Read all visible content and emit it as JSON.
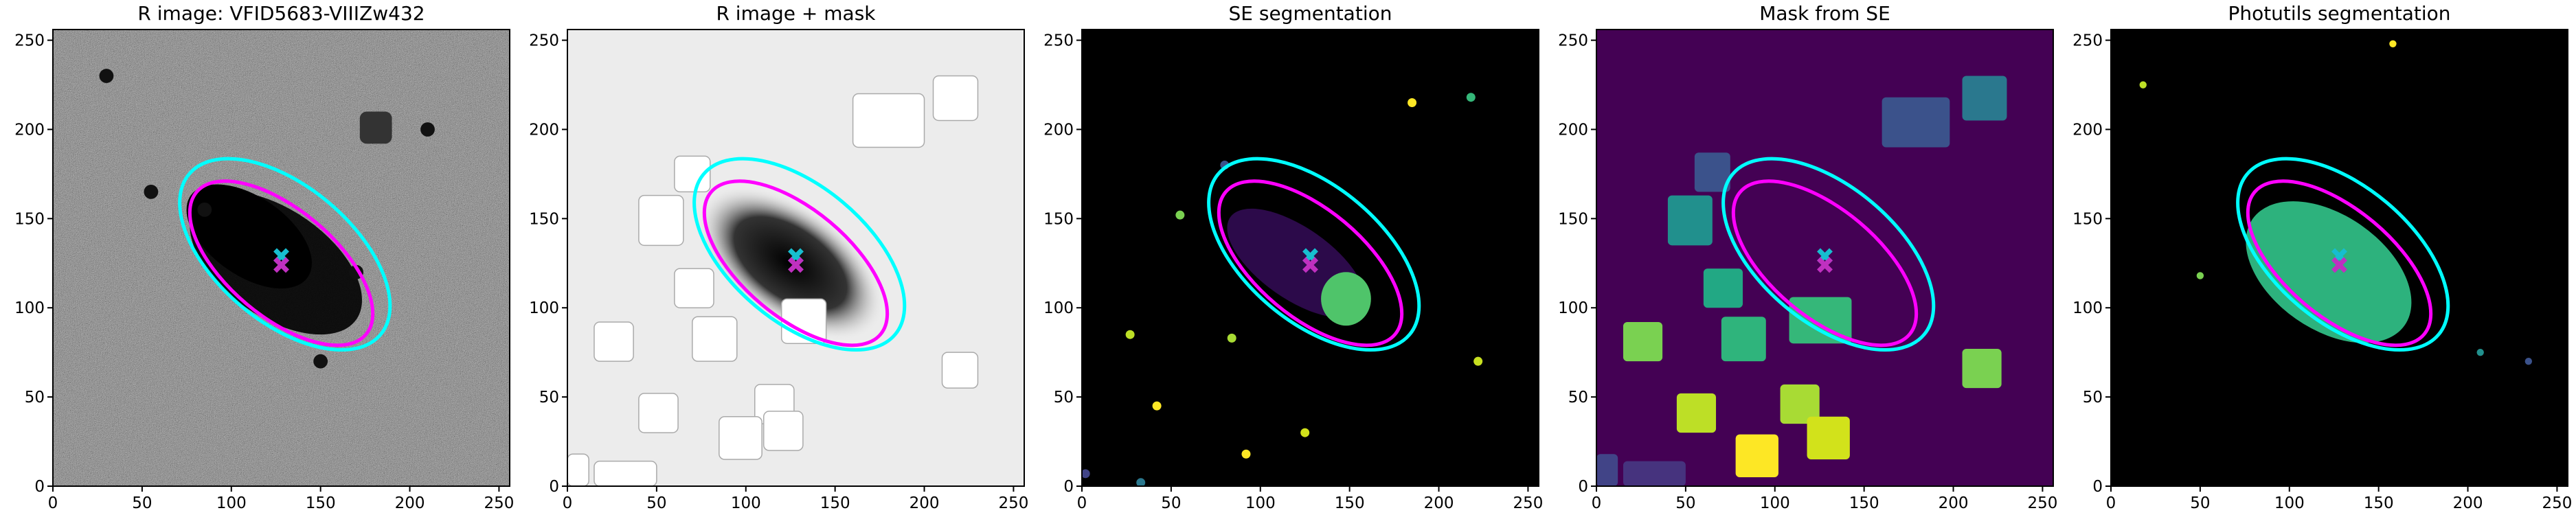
{
  "chart_data": [
    {
      "type": "image",
      "title": "R image: VFID5683-VIIIZw432",
      "background": "#808080",
      "noise": true,
      "xlim": [
        0,
        256
      ],
      "ylim": [
        0,
        256
      ],
      "xticks": [
        0,
        50,
        100,
        150,
        200,
        250
      ],
      "yticks": [
        0,
        50,
        100,
        150,
        200,
        250
      ],
      "ellipses": [
        {
          "color": "#00ffff",
          "x": 130,
          "y": 130,
          "width": 140,
          "height": 76,
          "angle": -40
        },
        {
          "color": "#ff00ff",
          "x": 128,
          "y": 125,
          "width": 124,
          "height": 60,
          "angle": -40
        }
      ],
      "markers": [
        {
          "color": "#17becf",
          "x": 128,
          "y": 129
        },
        {
          "color": "#c030c0",
          "x": 128,
          "y": 124
        }
      ]
    },
    {
      "type": "image",
      "title": "R image + mask",
      "background": "#ececec",
      "noise": false,
      "xlim": [
        0,
        256
      ],
      "ylim": [
        0,
        256
      ],
      "xticks": [
        0,
        50,
        100,
        150,
        200,
        250
      ],
      "yticks": [
        0,
        50,
        100,
        150,
        200,
        250
      ],
      "ellipses": [
        {
          "color": "#00ffff",
          "x": 130,
          "y": 130,
          "width": 140,
          "height": 76,
          "angle": -40
        },
        {
          "color": "#ff00ff",
          "x": 128,
          "y": 125,
          "width": 124,
          "height": 60,
          "angle": -40
        }
      ],
      "markers": [
        {
          "color": "#17becf",
          "x": 128,
          "y": 129
        },
        {
          "color": "#c030c0",
          "x": 128,
          "y": 124
        }
      ]
    },
    {
      "type": "image",
      "title": "SE segmentation",
      "background": "#000000",
      "noise": false,
      "xlim": [
        0,
        256
      ],
      "ylim": [
        0,
        256
      ],
      "xticks": [
        0,
        50,
        100,
        150,
        200,
        250
      ],
      "yticks": [
        0,
        50,
        100,
        150,
        200,
        250
      ],
      "ellipses": [
        {
          "color": "#00ffff",
          "x": 130,
          "y": 130,
          "width": 140,
          "height": 76,
          "angle": -40
        },
        {
          "color": "#ff00ff",
          "x": 128,
          "y": 125,
          "width": 124,
          "height": 60,
          "angle": -40
        }
      ],
      "markers": [
        {
          "color": "#17becf",
          "x": 128,
          "y": 129
        },
        {
          "color": "#c030c0",
          "x": 128,
          "y": 124
        }
      ]
    },
    {
      "type": "image",
      "title": "Mask from SE",
      "background": "#440154",
      "noise": false,
      "xlim": [
        0,
        256
      ],
      "ylim": [
        0,
        256
      ],
      "xticks": [
        0,
        50,
        100,
        150,
        200,
        250
      ],
      "yticks": [
        0,
        50,
        100,
        150,
        200,
        250
      ],
      "ellipses": [
        {
          "color": "#00ffff",
          "x": 130,
          "y": 130,
          "width": 140,
          "height": 76,
          "angle": -40
        },
        {
          "color": "#ff00ff",
          "x": 128,
          "y": 125,
          "width": 124,
          "height": 60,
          "angle": -40
        }
      ],
      "markers": [
        {
          "color": "#17becf",
          "x": 128,
          "y": 129
        },
        {
          "color": "#c030c0",
          "x": 128,
          "y": 124
        }
      ]
    },
    {
      "type": "image",
      "title": "Photutils segmentation",
      "background": "#000000",
      "noise": false,
      "xlim": [
        0,
        256
      ],
      "ylim": [
        0,
        256
      ],
      "xticks": [
        0,
        50,
        100,
        150,
        200,
        250
      ],
      "yticks": [
        0,
        50,
        100,
        150,
        200,
        250
      ],
      "ellipses": [
        {
          "color": "#00ffff",
          "x": 130,
          "y": 130,
          "width": 140,
          "height": 76,
          "angle": -40
        },
        {
          "color": "#ff00ff",
          "x": 128,
          "y": 125,
          "width": 124,
          "height": 60,
          "angle": -40
        }
      ],
      "markers": [
        {
          "color": "#17becf",
          "x": 128,
          "y": 129
        },
        {
          "color": "#c030c0",
          "x": 128,
          "y": 124
        }
      ]
    }
  ]
}
